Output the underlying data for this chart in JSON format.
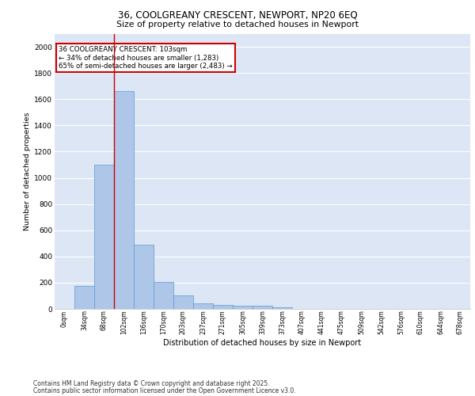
{
  "title_line1": "36, COOLGREANY CRESCENT, NEWPORT, NP20 6EQ",
  "title_line2": "Size of property relative to detached houses in Newport",
  "xlabel": "Distribution of detached houses by size in Newport",
  "ylabel": "Number of detached properties",
  "categories": [
    "0sqm",
    "34sqm",
    "68sqm",
    "102sqm",
    "136sqm",
    "170sqm",
    "203sqm",
    "237sqm",
    "271sqm",
    "305sqm",
    "339sqm",
    "373sqm",
    "407sqm",
    "441sqm",
    "475sqm",
    "509sqm",
    "542sqm",
    "576sqm",
    "610sqm",
    "644sqm",
    "678sqm"
  ],
  "values": [
    0,
    175,
    1100,
    1660,
    490,
    205,
    100,
    45,
    30,
    22,
    22,
    12,
    0,
    0,
    0,
    0,
    0,
    0,
    0,
    0,
    0
  ],
  "bar_color": "#aec6e8",
  "bar_edge_color": "#5b9bd5",
  "bg_color": "#dce6f5",
  "grid_color": "#ffffff",
  "vline_x": 2.5,
  "vline_color": "#cc0000",
  "annotation_title": "36 COOLGREANY CRESCENT: 103sqm",
  "annotation_line2": "← 34% of detached houses are smaller (1,283)",
  "annotation_line3": "65% of semi-detached houses are larger (2,483) →",
  "annotation_box_color": "#cc0000",
  "footer_line1": "Contains HM Land Registry data © Crown copyright and database right 2025.",
  "footer_line2": "Contains public sector information licensed under the Open Government Licence v3.0.",
  "ylim": [
    0,
    2100
  ],
  "yticks": [
    0,
    200,
    400,
    600,
    800,
    1000,
    1200,
    1400,
    1600,
    1800,
    2000
  ]
}
